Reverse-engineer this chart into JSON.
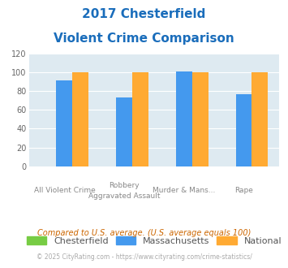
{
  "title_line1": "2017 Chesterfield",
  "title_line2": "Violent Crime Comparison",
  "categories_row1": [
    "",
    "Robbery",
    "Murder & Mans...",
    ""
  ],
  "categories_row2": [
    "All Violent Crime",
    "Aggravated Assault",
    "",
    "Rape"
  ],
  "chesterfield": [
    0,
    0,
    0,
    0
  ],
  "massachusetts": [
    91,
    73,
    101,
    77
  ],
  "national": [
    100,
    100,
    100,
    100
  ],
  "color_chesterfield": "#77cc44",
  "color_massachusetts": "#4499ee",
  "color_national": "#ffaa33",
  "ylim": [
    0,
    120
  ],
  "yticks": [
    0,
    20,
    40,
    60,
    80,
    100,
    120
  ],
  "bg_color": "#deeaf1",
  "title_color": "#1a6dbb",
  "label_color": "#888888",
  "legend_labels": [
    "Chesterfield",
    "Massachusetts",
    "National"
  ],
  "footnote1": "Compared to U.S. average. (U.S. average equals 100)",
  "footnote2": "© 2025 CityRating.com - https://www.cityrating.com/crime-statistics/",
  "footnote1_color": "#cc6600",
  "footnote2_color": "#aaaaaa"
}
